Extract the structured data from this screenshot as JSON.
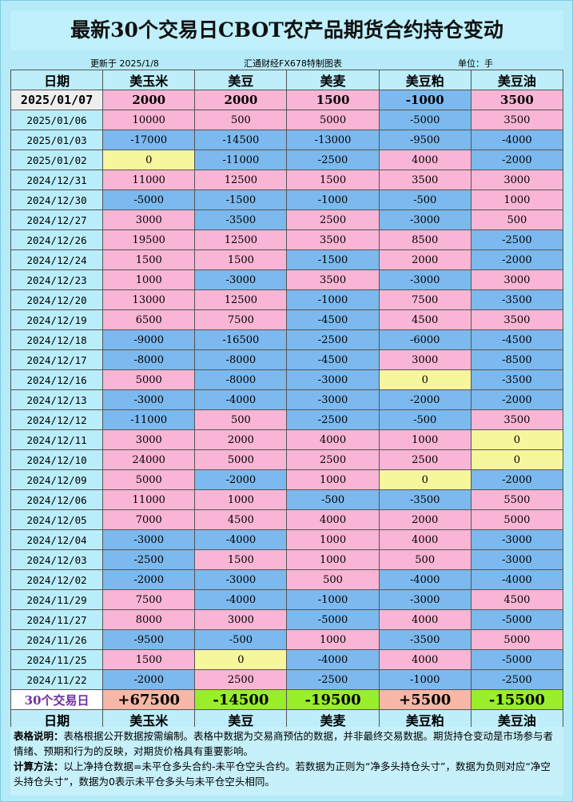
{
  "header": {
    "title": "最新30个交易日CBOT农产品期货合约持仓变动",
    "updated": "更新于 2025/1/8",
    "source": "汇通财经FX678特制图表",
    "unit": "单位：手"
  },
  "table": {
    "columns": [
      "日期",
      "美玉米",
      "美豆",
      "美麦",
      "美豆粕",
      "美豆油"
    ],
    "rows": [
      [
        "2025/01/07",
        "2000",
        "2000",
        "1500",
        "-1000",
        "3500"
      ],
      [
        "2025/01/06",
        "10000",
        "500",
        "5000",
        "-5000",
        "3500"
      ],
      [
        "2025/01/03",
        "-17000",
        "-14500",
        "-13000",
        "-9500",
        "-4000"
      ],
      [
        "2025/01/02",
        "0",
        "-11000",
        "-2500",
        "4000",
        "-2000"
      ],
      [
        "2024/12/31",
        "11000",
        "12500",
        "1500",
        "3500",
        "3000"
      ],
      [
        "2024/12/30",
        "-5000",
        "-1500",
        "-1000",
        "-500",
        "1000"
      ],
      [
        "2024/12/27",
        "3000",
        "-3500",
        "2500",
        "-3000",
        "500"
      ],
      [
        "2024/12/26",
        "19500",
        "12500",
        "3500",
        "8500",
        "-2500"
      ],
      [
        "2024/12/24",
        "1500",
        "1500",
        "-1500",
        "2000",
        "-2000"
      ],
      [
        "2024/12/23",
        "1000",
        "-3000",
        "3500",
        "-3000",
        "3000"
      ],
      [
        "2024/12/20",
        "13000",
        "12500",
        "-1000",
        "7500",
        "-3500"
      ],
      [
        "2024/12/19",
        "6500",
        "7500",
        "-4500",
        "4500",
        "3500"
      ],
      [
        "2024/12/18",
        "-9000",
        "-16500",
        "-2500",
        "-6000",
        "-4500"
      ],
      [
        "2024/12/17",
        "-8000",
        "-8000",
        "-4500",
        "3000",
        "-8500"
      ],
      [
        "2024/12/16",
        "5000",
        "-8000",
        "-3000",
        "0",
        "-3500"
      ],
      [
        "2024/12/13",
        "-3000",
        "-4000",
        "-3000",
        "-2000",
        "-2000"
      ],
      [
        "2024/12/12",
        "-11000",
        "500",
        "-2500",
        "-500",
        "3500"
      ],
      [
        "2024/12/11",
        "3000",
        "2000",
        "4000",
        "1000",
        "0"
      ],
      [
        "2024/12/10",
        "24000",
        "5000",
        "2500",
        "2500",
        "0"
      ],
      [
        "2024/12/09",
        "5000",
        "-2000",
        "1000",
        "0",
        "-2000"
      ],
      [
        "2024/12/06",
        "11000",
        "1000",
        "-500",
        "-3500",
        "5500"
      ],
      [
        "2024/12/05",
        "7000",
        "4500",
        "4000",
        "2000",
        "5000"
      ],
      [
        "2024/12/04",
        "-3000",
        "-4000",
        "1000",
        "4000",
        "-3000"
      ],
      [
        "2024/12/03",
        "-2500",
        "1500",
        "1000",
        "500",
        "-3000"
      ],
      [
        "2024/12/02",
        "-2000",
        "-3000",
        "500",
        "-4000",
        "-4000"
      ],
      [
        "2024/11/29",
        "7500",
        "-4000",
        "-1000",
        "-3000",
        "4500"
      ],
      [
        "2024/11/27",
        "8000",
        "3000",
        "-5000",
        "4000",
        "-5000"
      ],
      [
        "2024/11/26",
        "-9500",
        "-500",
        "1000",
        "-3500",
        "5000"
      ],
      [
        "2024/11/25",
        "1500",
        "0",
        "-4000",
        "4000",
        "-5000"
      ],
      [
        "2024/11/22",
        "-2000",
        "2500",
        "-2500",
        "-1000",
        "-2500"
      ]
    ],
    "totals": [
      "30个交易日",
      "+67500",
      "-14500",
      "-19500",
      "+5500",
      "-15500"
    ]
  },
  "notes": [
    {
      "label": "表格说明：",
      "text": "表格根据公开数据按需编制。表格中数据为交易商预估的数据，并非最终交易数据。期货持仓变动是市场参与者情绪、预期和行为的反映，对期货价格具有重要影响。"
    },
    {
      "label": "计算方法：",
      "text": "以上净持仓数据=未平仓多头合约-未平仓空头合约。若数据为正则为“净多头持仓头寸”，数据为负则对应“净空头持仓头寸”，数据为0表示未平仓多头与未平仓空头相同。"
    }
  ]
}
